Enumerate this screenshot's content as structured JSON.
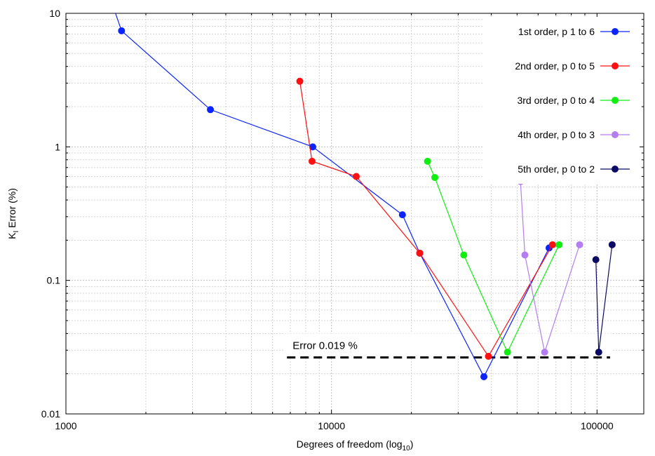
{
  "chart_data": {
    "type": "line",
    "title": "",
    "xlabel_main": "Degrees of freedom (log",
    "xlabel_sub": "10",
    "xlabel_close": ")",
    "ylabel_main": "K",
    "ylabel_sub": "I",
    "ylabel_rest": " Error (%)",
    "xscale": "log",
    "yscale": "log",
    "xlim": [
      1000,
      150000
    ],
    "ylim": [
      0.01,
      10
    ],
    "x_ticks": [
      {
        "value": 1000,
        "label": "1000"
      },
      {
        "value": 10000,
        "label": "10000"
      },
      {
        "value": 100000,
        "label": "100000"
      }
    ],
    "y_ticks": [
      {
        "value": 10,
        "label": "10"
      },
      {
        "value": 1,
        "label": "1"
      },
      {
        "value": 0.1,
        "label": "0.1"
      },
      {
        "value": 0.01,
        "label": "0.01"
      }
    ],
    "grid": true,
    "legend_position": "top-right",
    "series": [
      {
        "name": "1st order, p 1 to 6",
        "color": "#0a24ff",
        "x": [
          1450,
          1620,
          3500,
          8500,
          18500,
          21500,
          37500,
          66000
        ],
        "y": [
          14,
          7.4,
          1.9,
          1.0,
          0.31,
          0.16,
          0.019,
          0.175
        ]
      },
      {
        "name": "2nd order, p 0 to 5",
        "color": "#ff1010",
        "x": [
          7600,
          8450,
          12400,
          21500,
          39000,
          68000
        ],
        "y": [
          3.1,
          0.78,
          0.6,
          0.16,
          0.027,
          0.185
        ]
      },
      {
        "name": "3rd order, p 0 to 4",
        "color": "#10ee10",
        "x": [
          23000,
          24500,
          31500,
          46000,
          72000
        ],
        "y": [
          0.78,
          0.59,
          0.155,
          0.029,
          0.185
        ]
      },
      {
        "name": "4th order, p 0 to 3",
        "color": "#b57ef0",
        "x": [
          51500,
          53500,
          63500,
          86000
        ],
        "y": [
          0.55,
          0.155,
          0.029,
          0.185
        ]
      },
      {
        "name": "5th order, p 0 to 2",
        "color": "#0a0a66",
        "x": [
          99000,
          101500,
          114000
        ],
        "y": [
          0.143,
          0.029,
          0.185
        ]
      }
    ],
    "reference_line": {
      "label": "Error 0.019 %",
      "y": 0.0265,
      "x_start": 6800,
      "x_end": 112000,
      "style": "dashed"
    }
  }
}
